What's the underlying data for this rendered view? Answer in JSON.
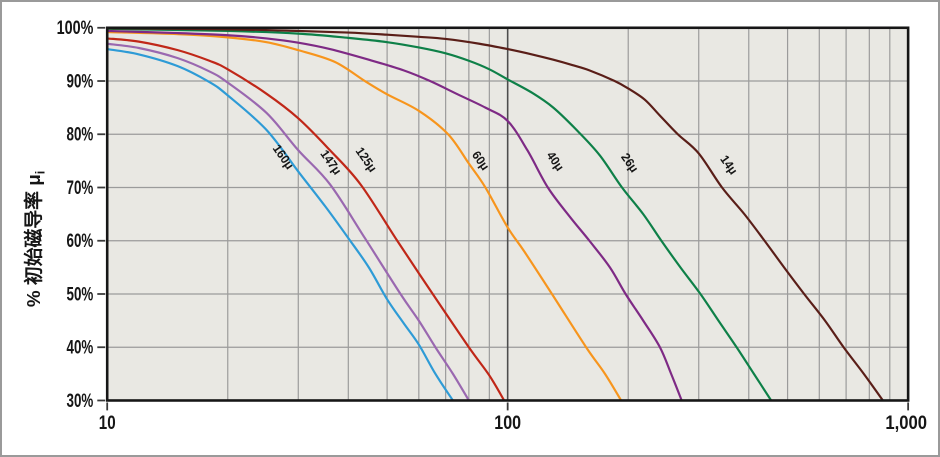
{
  "page": {
    "background": "#ffffff",
    "border_color": "#9a9a9a"
  },
  "chart_data": {
    "type": "line",
    "title": "",
    "xlabel": "",
    "ylabel": {
      "text": "% 初始磁导率 μ",
      "subscript": "i"
    },
    "x_scale": "log",
    "xlim": [
      10,
      1000
    ],
    "ylim": [
      30,
      100
    ],
    "grid": "on",
    "legend_position": "inline-rotated-labels",
    "plot_bg": "#e9e8e3",
    "grid_color": "#9b9b9b",
    "major_line_color": "#4d4d4d",
    "frame_color": "#161616",
    "x_ticks": [
      {
        "value": 10,
        "label": "10"
      },
      {
        "value": 100,
        "label": "100"
      },
      {
        "value": 1000,
        "label": "1,000"
      }
    ],
    "x_minor_gridlines": [
      20,
      30,
      40,
      50,
      60,
      70,
      80,
      90,
      200,
      300,
      400,
      500,
      600,
      700,
      800,
      900
    ],
    "x_major_gridline": 100,
    "y_ticks": [
      {
        "value": 100,
        "label": "100%"
      },
      {
        "value": 90,
        "label": "90%"
      },
      {
        "value": 80,
        "label": "80%"
      },
      {
        "value": 70,
        "label": "70%"
      },
      {
        "value": 60,
        "label": "60%"
      },
      {
        "value": 50,
        "label": "50%"
      },
      {
        "value": 40,
        "label": "40%"
      },
      {
        "value": 30,
        "label": "30%"
      }
    ],
    "series": [
      {
        "name": "160μ",
        "color": "#2e9bd6",
        "label": {
          "text": "160μ",
          "x": 27,
          "pct": 75.3,
          "rotation": 55
        },
        "points": [
          [
            10,
            96
          ],
          [
            12,
            95
          ],
          [
            15,
            92.8
          ],
          [
            18,
            89.8
          ],
          [
            20,
            87.3
          ],
          [
            25,
            80.8
          ],
          [
            30,
            73
          ],
          [
            35,
            66.5
          ],
          [
            40,
            60.5
          ],
          [
            45,
            55
          ],
          [
            50,
            49
          ],
          [
            55,
            44.5
          ],
          [
            60,
            40.5
          ],
          [
            66,
            35
          ],
          [
            73,
            30
          ]
        ]
      },
      {
        "name": "147μ",
        "color": "#9a68b0",
        "label": {
          "text": "147μ",
          "x": 35.5,
          "pct": 74.3,
          "rotation": 55
        },
        "points": [
          [
            10,
            97
          ],
          [
            12,
            96.2
          ],
          [
            15,
            94.3
          ],
          [
            18,
            91.8
          ],
          [
            20,
            89.7
          ],
          [
            25,
            84
          ],
          [
            30,
            77
          ],
          [
            36,
            70.6
          ],
          [
            44,
            60.5
          ],
          [
            54,
            50
          ],
          [
            60,
            45
          ],
          [
            66,
            40
          ],
          [
            73,
            35
          ],
          [
            80,
            30
          ]
        ]
      },
      {
        "name": "125μ",
        "color": "#c02718",
        "label": {
          "text": "125μ",
          "x": 43.5,
          "pct": 74.8,
          "rotation": 55
        },
        "points": [
          [
            10,
            98
          ],
          [
            12,
            97.4
          ],
          [
            15,
            95.8
          ],
          [
            18,
            93.8
          ],
          [
            20,
            92.2
          ],
          [
            25,
            87.6
          ],
          [
            30,
            83
          ],
          [
            36,
            77
          ],
          [
            43,
            70.5
          ],
          [
            53,
            60
          ],
          [
            65,
            50
          ],
          [
            80,
            40
          ],
          [
            90,
            34.7
          ],
          [
            98,
            30
          ]
        ]
      },
      {
        "name": "60μ",
        "color": "#f7951d",
        "label": {
          "text": "60μ",
          "x": 84,
          "pct": 74.6,
          "rotation": 55
        },
        "points": [
          [
            10,
            99.2
          ],
          [
            15,
            98.8
          ],
          [
            20,
            98.2
          ],
          [
            25,
            97.3
          ],
          [
            30,
            95.8
          ],
          [
            37,
            93.6
          ],
          [
            44,
            90
          ],
          [
            50,
            87.5
          ],
          [
            60,
            84.4
          ],
          [
            71,
            80
          ],
          [
            80,
            74.5
          ],
          [
            88,
            70
          ],
          [
            100,
            62.5
          ],
          [
            110,
            58
          ],
          [
            129,
            50
          ],
          [
            157,
            40
          ],
          [
            175,
            35
          ],
          [
            192,
            30
          ]
        ]
      },
      {
        "name": "40μ",
        "color": "#7e2a85",
        "label": {
          "text": "40μ",
          "x": 129,
          "pct": 74.5,
          "rotation": 55
        },
        "points": [
          [
            10,
            99.4
          ],
          [
            15,
            99
          ],
          [
            20,
            98.6
          ],
          [
            25,
            98
          ],
          [
            30,
            97.2
          ],
          [
            36,
            96
          ],
          [
            45,
            94
          ],
          [
            55,
            92
          ],
          [
            64,
            90
          ],
          [
            75,
            87.5
          ],
          [
            88,
            85
          ],
          [
            100,
            82.5
          ],
          [
            112,
            77
          ],
          [
            126,
            70
          ],
          [
            143,
            64.5
          ],
          [
            160,
            60
          ],
          [
            180,
            55
          ],
          [
            197,
            50
          ],
          [
            218,
            45
          ],
          [
            240,
            40
          ],
          [
            256,
            35
          ],
          [
            272,
            30
          ]
        ]
      },
      {
        "name": "26μ",
        "color": "#0e8048",
        "label": {
          "text": "26μ",
          "x": 198,
          "pct": 74.2,
          "rotation": 55
        },
        "points": [
          [
            10,
            99.8
          ],
          [
            20,
            99.4
          ],
          [
            30,
            98.9
          ],
          [
            40,
            98.1
          ],
          [
            50,
            97.3
          ],
          [
            60,
            96.3
          ],
          [
            70,
            95.2
          ],
          [
            80,
            93.8
          ],
          [
            90,
            92.2
          ],
          [
            100,
            90.3
          ],
          [
            115,
            87.8
          ],
          [
            130,
            85
          ],
          [
            150,
            80.5
          ],
          [
            170,
            76
          ],
          [
            193,
            70
          ],
          [
            218,
            65
          ],
          [
            242,
            60
          ],
          [
            270,
            55
          ],
          [
            303,
            50
          ],
          [
            336,
            45
          ],
          [
            373,
            40
          ],
          [
            412,
            35
          ],
          [
            455,
            30
          ]
        ]
      },
      {
        "name": "14μ",
        "color": "#5a1e18",
        "label": {
          "text": "14μ",
          "x": 350,
          "pct": 73.8,
          "rotation": 55
        },
        "points": [
          [
            10,
            99.9
          ],
          [
            20,
            99.7
          ],
          [
            30,
            99.4
          ],
          [
            40,
            99.1
          ],
          [
            50,
            98.7
          ],
          [
            60,
            98.3
          ],
          [
            70,
            97.9
          ],
          [
            85,
            97
          ],
          [
            100,
            96
          ],
          [
            115,
            95
          ],
          [
            130,
            94
          ],
          [
            145,
            93
          ],
          [
            160,
            92
          ],
          [
            185,
            90
          ],
          [
            200,
            88.6
          ],
          [
            220,
            86.5
          ],
          [
            240,
            83.5
          ],
          [
            266,
            80
          ],
          [
            300,
            76.4
          ],
          [
            343,
            70
          ],
          [
            390,
            65
          ],
          [
            438,
            60
          ],
          [
            490,
            55
          ],
          [
            550,
            50
          ],
          [
            620,
            45
          ],
          [
            690,
            40
          ],
          [
            775,
            35
          ],
          [
            865,
            30
          ]
        ]
      }
    ]
  }
}
